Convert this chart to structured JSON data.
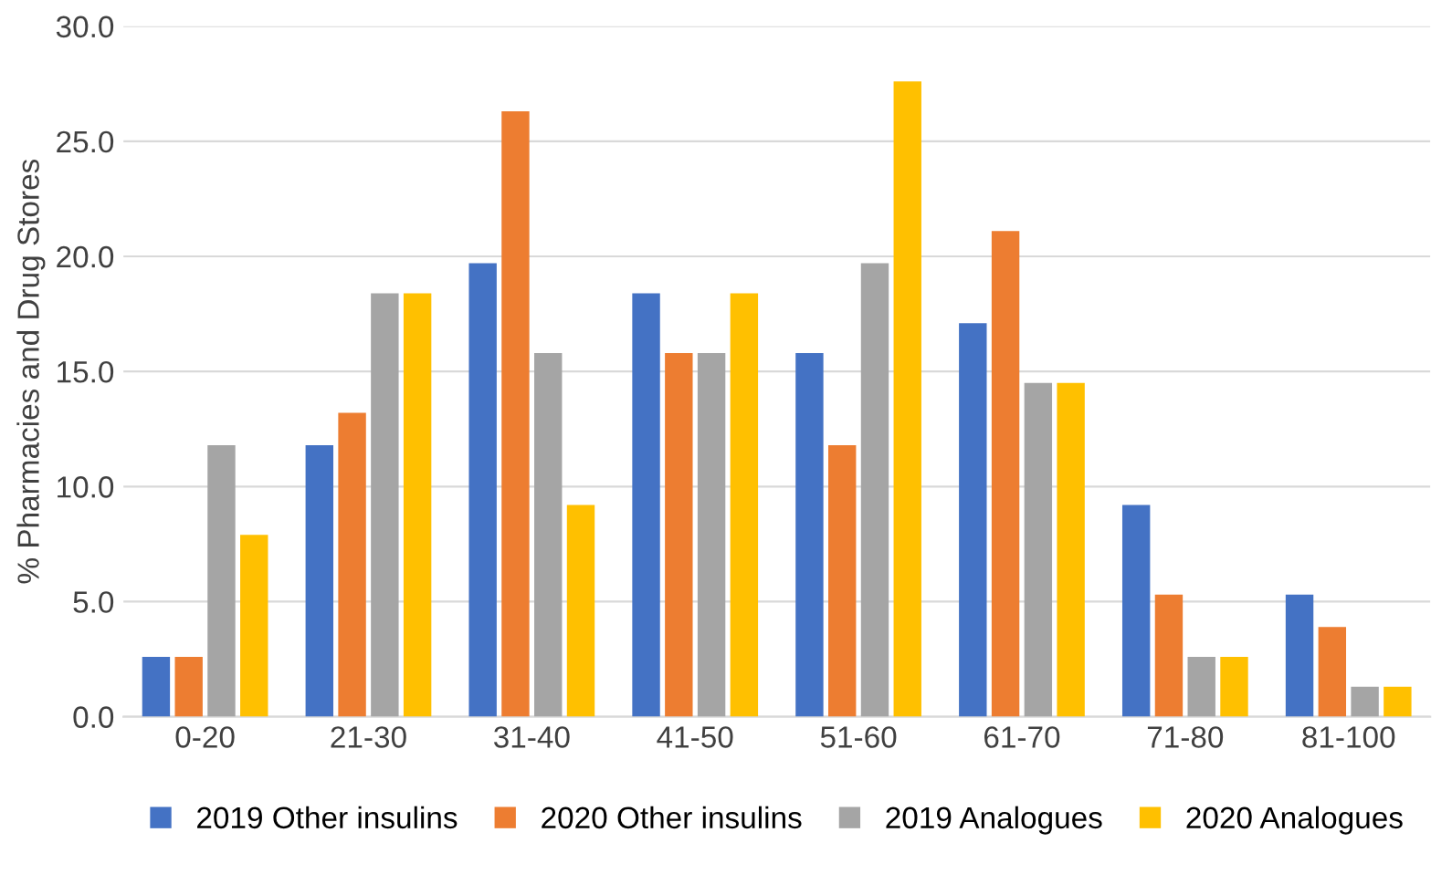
{
  "chart_data": {
    "type": "bar",
    "ylabel": "% Pharmacies and Drug Stores",
    "categories": [
      "0-20",
      "21-30",
      "31-40",
      "41-50",
      "51-60",
      "61-70",
      "71-80",
      "81-100"
    ],
    "series": [
      {
        "name": "2019 Other insulins",
        "color": "#4472c4",
        "values": [
          2.6,
          11.8,
          19.7,
          18.4,
          15.8,
          17.1,
          9.2,
          5.3
        ]
      },
      {
        "name": "2020 Other insulins",
        "color": "#ed7d31",
        "values": [
          2.6,
          13.2,
          26.3,
          15.8,
          11.8,
          21.1,
          5.3,
          3.9
        ]
      },
      {
        "name": "2019 Analogues",
        "color": "#a5a5a5",
        "values": [
          11.8,
          18.4,
          15.8,
          15.8,
          19.7,
          14.5,
          2.6,
          1.3
        ]
      },
      {
        "name": "2020 Analogues",
        "color": "#ffc000",
        "values": [
          7.9,
          18.4,
          9.2,
          18.4,
          27.6,
          14.5,
          2.6,
          1.3
        ]
      }
    ],
    "ylim": [
      0,
      30
    ],
    "yticks": [
      {
        "value": 0,
        "label": "0.0"
      },
      {
        "value": 5,
        "label": "5.0"
      },
      {
        "value": 10,
        "label": "10.0"
      },
      {
        "value": 15,
        "label": "15.0"
      },
      {
        "value": 20,
        "label": "20.0"
      },
      {
        "value": 25,
        "label": "25.0"
      },
      {
        "value": 30,
        "label": "30.0"
      }
    ],
    "grid": "y",
    "legend": "bottom"
  }
}
